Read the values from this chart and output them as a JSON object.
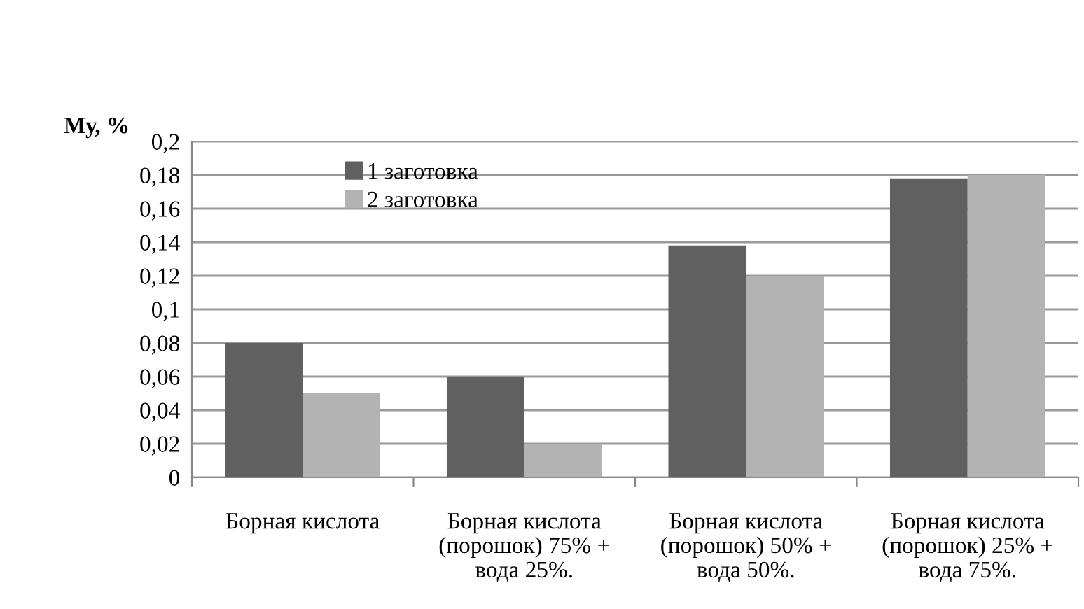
{
  "chart_data": {
    "type": "bar",
    "ylabel": "Му, %",
    "categories": [
      "Борная кислота",
      "Борная кислота\n(порошок) 75% +\nвода 25%.",
      "Борная кислота\n(порошок) 50% +\nвода 50%.",
      "Борная кислота\n(порошок) 25% +\nвода 75%."
    ],
    "series": [
      {
        "name": "1 заготовка",
        "color": "#606060",
        "values": [
          0.08,
          0.06,
          0.138,
          0.178
        ]
      },
      {
        "name": "2 заготовка",
        "color": "#b3b3b3",
        "values": [
          0.05,
          0.02,
          0.12,
          0.18
        ]
      }
    ],
    "ylim": [
      0,
      0.2
    ],
    "yticks": [
      {
        "value": 0,
        "label": "0"
      },
      {
        "value": 0.02,
        "label": "0,02"
      },
      {
        "value": 0.04,
        "label": "0,04"
      },
      {
        "value": 0.06,
        "label": "0,06"
      },
      {
        "value": 0.08,
        "label": "0,08"
      },
      {
        "value": 0.1,
        "label": "0,1"
      },
      {
        "value": 0.12,
        "label": "0,12"
      },
      {
        "value": 0.14,
        "label": "0,14"
      },
      {
        "value": 0.16,
        "label": "0,16"
      },
      {
        "value": 0.18,
        "label": "0,18"
      },
      {
        "value": 0.2,
        "label": "0,2"
      }
    ],
    "grid": "y",
    "legend": "top left"
  }
}
